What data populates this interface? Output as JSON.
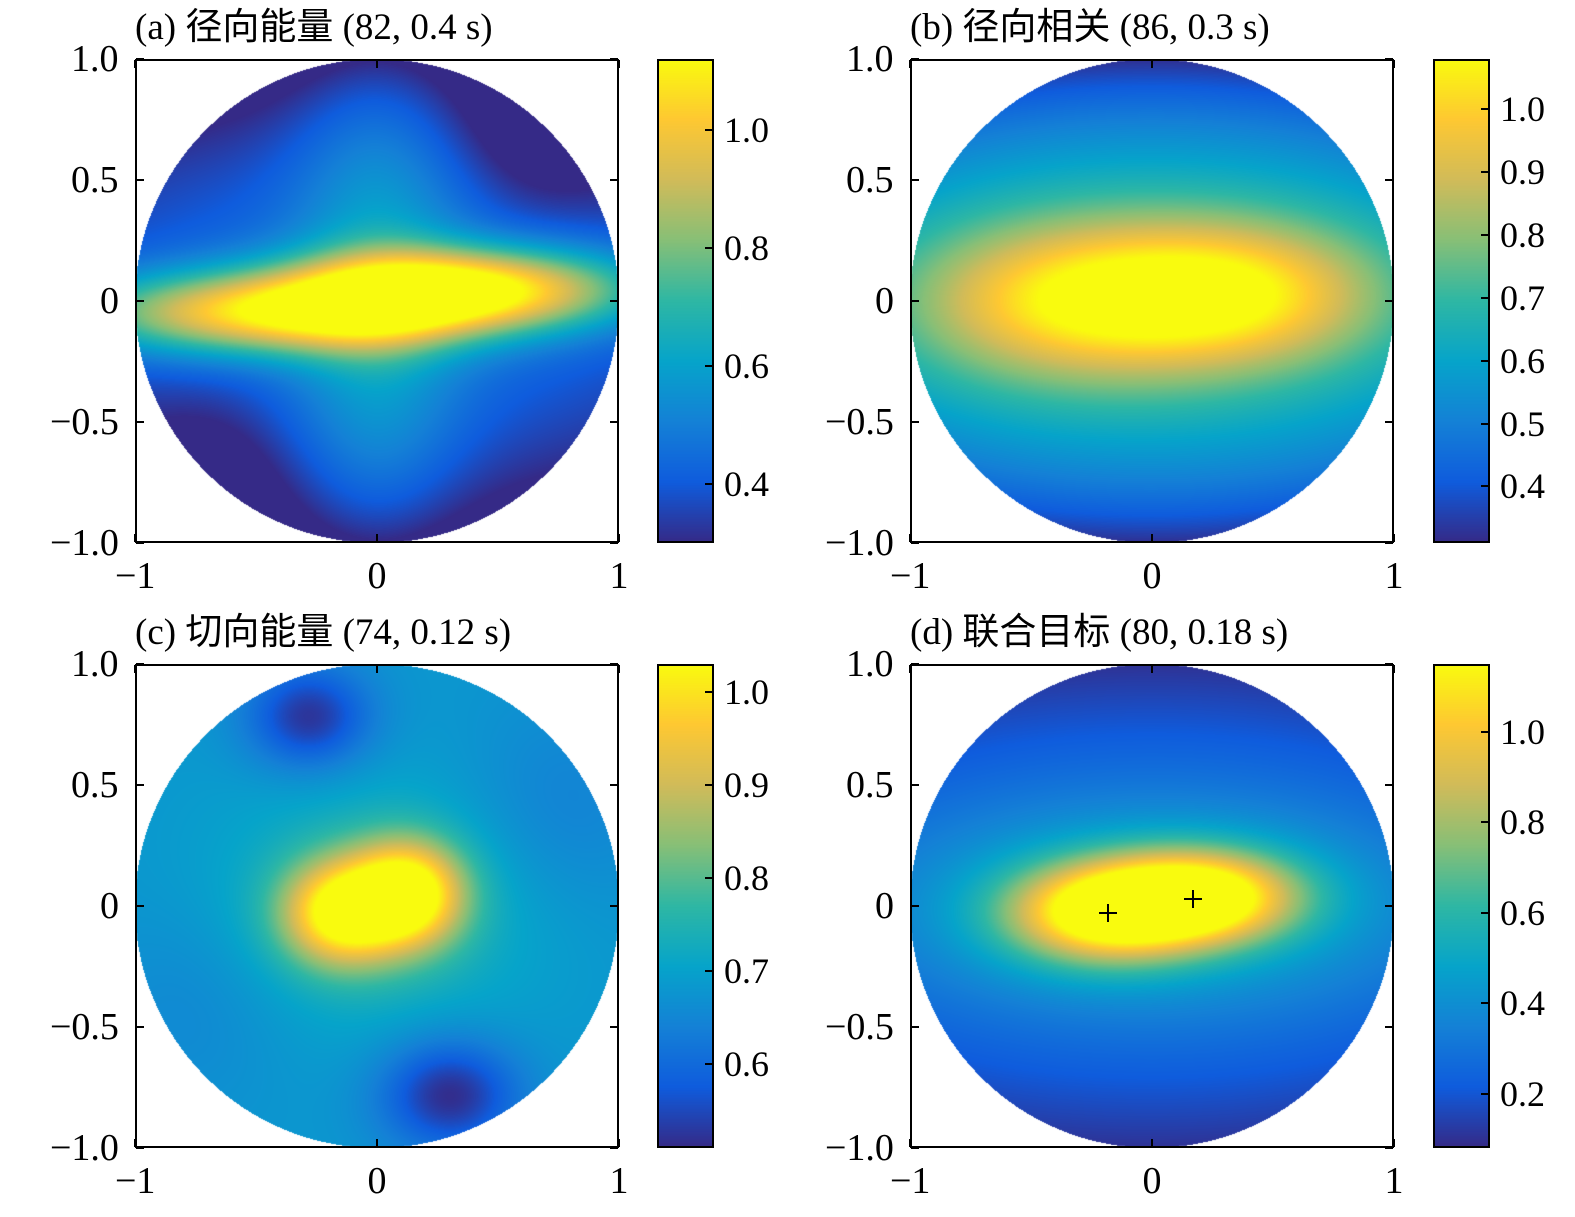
{
  "colormap": [
    "#352a87",
    "#0f5cdd",
    "#1481d6",
    "#06a4ca",
    "#2eb7a4",
    "#87bf77",
    "#d1bb59",
    "#fec832",
    "#f9fb0e"
  ],
  "chart_data": [
    {
      "type": "heatmap",
      "title": "(a) 径向能量 (82, 0.4 s)",
      "xlim": [
        -1,
        1
      ],
      "ylim": [
        -1,
        1
      ],
      "xticks": [
        -1,
        0,
        1
      ],
      "xtick_labels": [
        "−1",
        "0",
        "1"
      ],
      "yticks": [
        1.0,
        0.5,
        0,
        -0.5,
        -1.0
      ],
      "ytick_labels": [
        "1.0",
        "0.5",
        "0",
        "−0.5",
        "−1.0"
      ],
      "clim": [
        0.3,
        1.12
      ],
      "cticks": [
        1.0,
        0.8,
        0.6,
        0.4
      ],
      "ctick_labels": [
        "1.0",
        "0.8",
        "0.6",
        "0.4"
      ],
      "markers": [],
      "field": {
        "base": 0.45,
        "falloff": 0.25,
        "blobs": [
          {
            "x": -0.45,
            "y": -0.05,
            "sx": 0.55,
            "sy": 0.12,
            "a": 0.62
          },
          {
            "x": 0.38,
            "y": 0.05,
            "sx": 0.48,
            "sy": 0.12,
            "a": 0.68
          },
          {
            "x": 0.0,
            "y": 0.5,
            "sx": 0.25,
            "sy": 0.5,
            "a": 0.15
          },
          {
            "x": 0.0,
            "y": -0.5,
            "sx": 0.25,
            "sy": 0.5,
            "a": 0.15
          },
          {
            "x": 0.7,
            "y": 0.7,
            "sx": 0.25,
            "sy": 0.25,
            "a": -0.12
          },
          {
            "x": -0.7,
            "y": -0.7,
            "sx": 0.25,
            "sy": 0.25,
            "a": -0.1
          }
        ]
      }
    },
    {
      "type": "heatmap",
      "title": "(b) 径向相关 (86, 0.3 s)",
      "xlim": [
        -1,
        1
      ],
      "ylim": [
        -1,
        1
      ],
      "xticks": [
        -1,
        0,
        1
      ],
      "xtick_labels": [
        "−1",
        "0",
        "1"
      ],
      "yticks": [
        1.0,
        0.5,
        0,
        -0.5,
        -1.0
      ],
      "ytick_labels": [
        "1.0",
        "0.5",
        "0",
        "−0.5",
        "−1.0"
      ],
      "clim": [
        0.31,
        1.08
      ],
      "cticks": [
        1.0,
        0.9,
        0.8,
        0.7,
        0.6,
        0.5,
        0.4
      ],
      "ctick_labels": [
        "1.0",
        "0.9",
        "0.8",
        "0.7",
        "0.6",
        "0.5",
        "0.4"
      ],
      "markers": [],
      "field": {
        "base": 0.72,
        "falloff": 0.4,
        "blobs": [
          {
            "x": -0.35,
            "y": 0.0,
            "sx": 0.45,
            "sy": 0.22,
            "a": 0.33
          },
          {
            "x": 0.33,
            "y": 0.03,
            "sx": 0.42,
            "sy": 0.2,
            "a": 0.36
          }
        ]
      }
    },
    {
      "type": "heatmap",
      "title": "(c) 切向能量 (74, 0.12 s)",
      "xlim": [
        -1,
        1
      ],
      "ylim": [
        -1,
        1
      ],
      "xticks": [
        -1,
        0,
        1
      ],
      "xtick_labels": [
        "−1",
        "0",
        "1"
      ],
      "yticks": [
        1.0,
        0.5,
        0,
        -0.5,
        -1.0
      ],
      "ytick_labels": [
        "1.0",
        "0.5",
        "0",
        "−0.5",
        "−1.0"
      ],
      "clim": [
        0.51,
        1.03
      ],
      "cticks": [
        1.0,
        0.9,
        0.8,
        0.7,
        0.6
      ],
      "ctick_labels": [
        "1.0",
        "0.9",
        "0.8",
        "0.7",
        "0.6"
      ],
      "markers": [],
      "field": {
        "base": 0.68,
        "falloff": 0.0,
        "blobs": [
          {
            "x": -0.15,
            "y": -0.03,
            "sx": 0.17,
            "sy": 0.15,
            "a": 0.33
          },
          {
            "x": 0.13,
            "y": 0.05,
            "sx": 0.16,
            "sy": 0.15,
            "a": 0.36
          },
          {
            "x": 0.0,
            "y": 0.0,
            "sx": 0.45,
            "sy": 0.35,
            "a": 0.08
          },
          {
            "x": -0.28,
            "y": 0.78,
            "sx": 0.18,
            "sy": 0.15,
            "a": -0.16
          },
          {
            "x": 0.3,
            "y": -0.78,
            "sx": 0.2,
            "sy": 0.16,
            "a": -0.17
          },
          {
            "x": 0.75,
            "y": 0.4,
            "sx": 0.3,
            "sy": 0.3,
            "a": -0.04
          },
          {
            "x": -0.75,
            "y": -0.4,
            "sx": 0.3,
            "sy": 0.3,
            "a": -0.03
          }
        ]
      }
    },
    {
      "type": "heatmap",
      "title": "(d) 联合目标 (80, 0.18 s)",
      "xlim": [
        -1,
        1
      ],
      "ylim": [
        -1,
        1
      ],
      "xticks": [
        -1,
        0,
        1
      ],
      "xtick_labels": [
        "−1",
        "0",
        "1"
      ],
      "yticks": [
        1.0,
        0.5,
        0,
        -0.5,
        -1.0
      ],
      "ytick_labels": [
        "1.0",
        "0.5",
        "0",
        "−0.5",
        "−1.0"
      ],
      "clim": [
        0.08,
        1.15
      ],
      "cticks": [
        1.0,
        0.8,
        0.6,
        0.4,
        0.2
      ],
      "ctick_labels": [
        "1.0",
        "0.8",
        "0.6",
        "0.4",
        "0.2"
      ],
      "markers": [
        {
          "x": -0.18,
          "y": -0.03
        },
        {
          "x": 0.17,
          "y": 0.03
        }
      ],
      "field": {
        "base": 0.3,
        "falloff": 0.2,
        "blobs": [
          {
            "x": -0.2,
            "y": -0.03,
            "sx": 0.28,
            "sy": 0.14,
            "a": 0.75
          },
          {
            "x": 0.2,
            "y": 0.04,
            "sx": 0.28,
            "sy": 0.13,
            "a": 0.8
          },
          {
            "x": 0.0,
            "y": 0.0,
            "sx": 0.8,
            "sy": 0.3,
            "a": 0.25
          }
        ]
      }
    }
  ]
}
